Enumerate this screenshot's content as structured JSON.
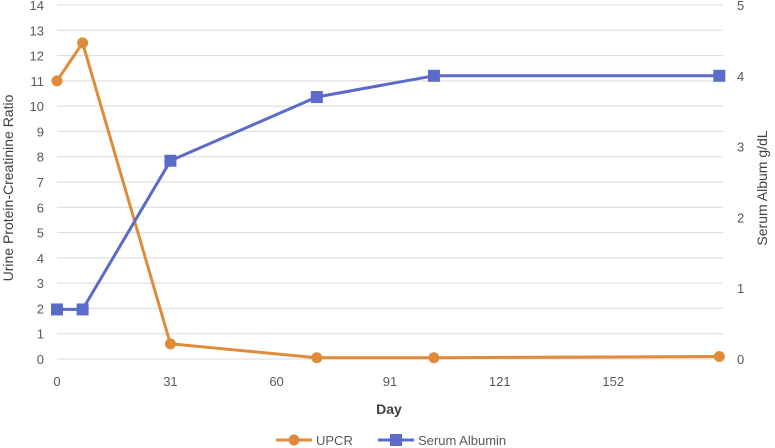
{
  "chart_data": {
    "type": "line",
    "xlabel": "Day",
    "ylabel": "Urine Protein-Creatinine Ratio",
    "y2label": "Serum Album g/dL",
    "xlim": [
      0,
      182
    ],
    "ylim": [
      0,
      14
    ],
    "y2lim": [
      0,
      5
    ],
    "x_ticks": [
      0,
      31,
      60,
      91,
      121,
      152
    ],
    "y_ticks": [
      0,
      1,
      2,
      3,
      4,
      5,
      6,
      7,
      8,
      9,
      10,
      11,
      12,
      13,
      14
    ],
    "y2_ticks": [
      0,
      1,
      2,
      3,
      4,
      5
    ],
    "grid": "horizontal",
    "legend_position": "bottom",
    "series": [
      {
        "name": "UPCR",
        "axis": "left",
        "marker": "circle",
        "color": "#E08B3A",
        "x": [
          0,
          7,
          31,
          71,
          103,
          181
        ],
        "y": [
          11,
          12.5,
          0.6,
          0.05,
          0.05,
          0.1
        ]
      },
      {
        "name": "Serum Albumin",
        "axis": "right",
        "marker": "square",
        "color": "#5B6BC9",
        "x": [
          0,
          7,
          31,
          71,
          103,
          181
        ],
        "y": [
          0.7,
          0.7,
          2.8,
          3.7,
          4.0,
          4.0
        ]
      }
    ]
  }
}
